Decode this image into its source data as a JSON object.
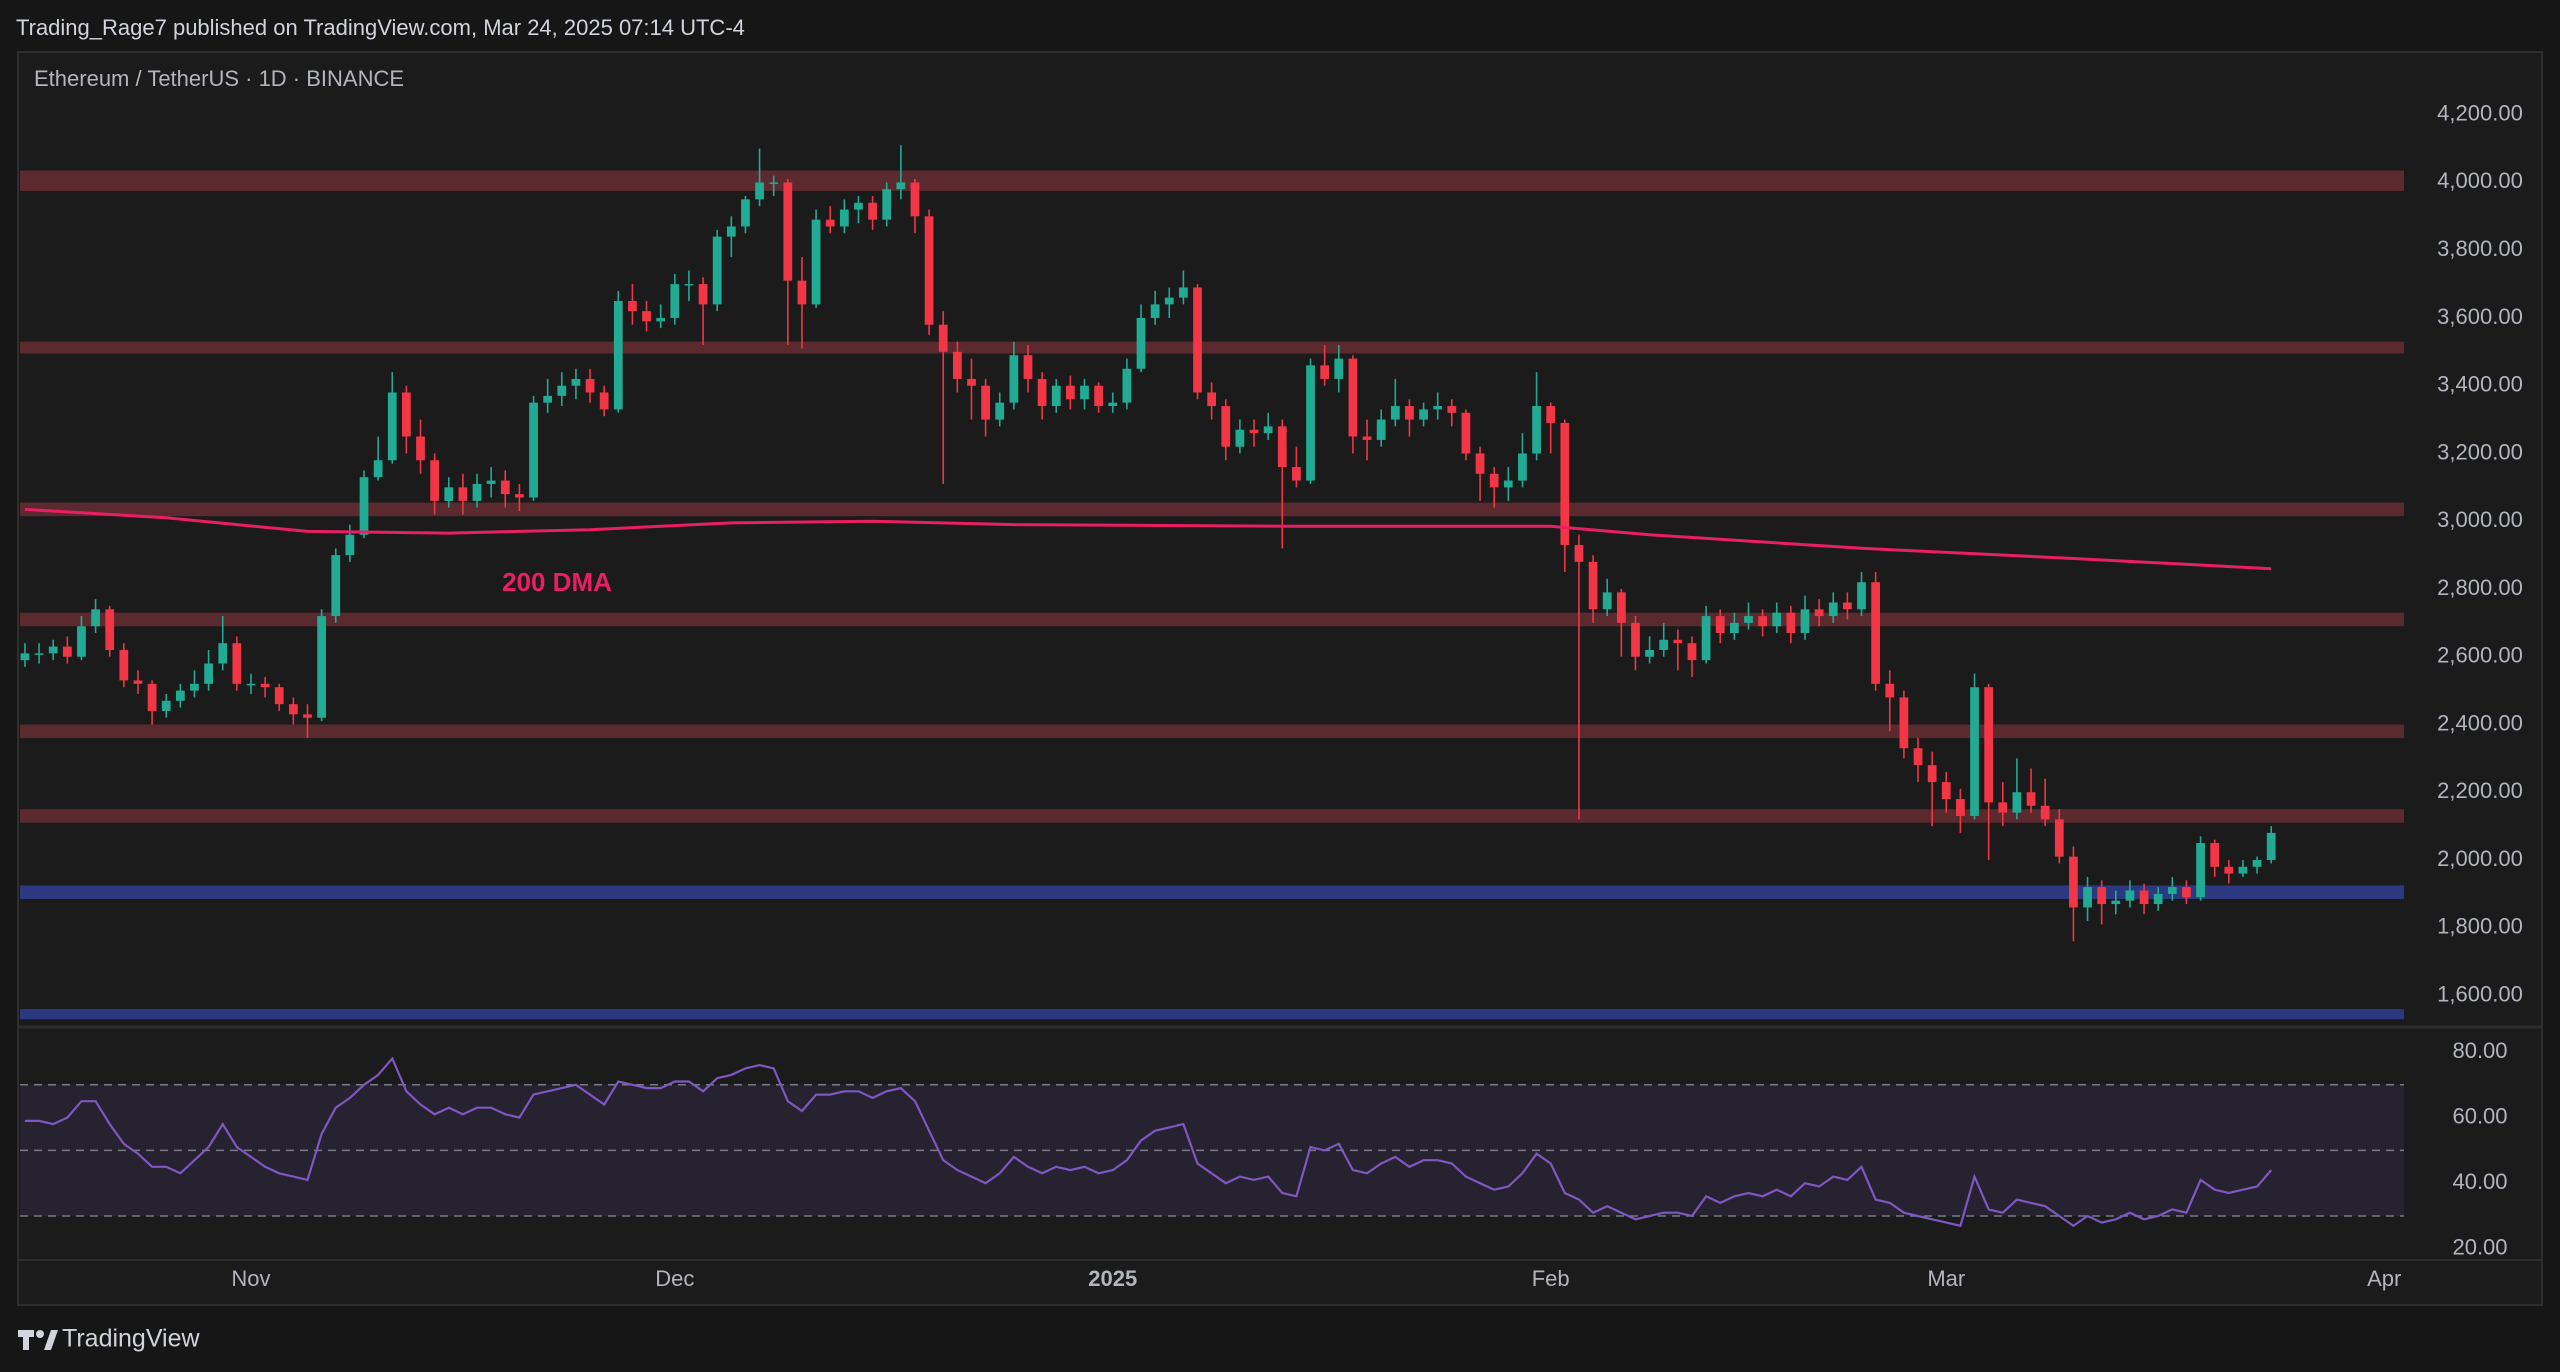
{
  "header": "Trading_Rage7 published on TradingView.com, Mar 24, 2025 07:14 UTC-4",
  "footer": "TradingView",
  "chart_data": [
    {
      "type": "candlestick",
      "title": "Ethereum / TetherUS · 1D · BINANCE",
      "up_color": "#22ab94",
      "down_color": "#f23645",
      "xlim": [
        -0.35,
        168.4
      ],
      "xticks": [
        {
          "value": 16,
          "label": "Nov"
        },
        {
          "value": 46,
          "label": "Dec"
        },
        {
          "value": 77,
          "label": "2025"
        },
        {
          "value": 108,
          "label": "Feb"
        },
        {
          "value": 136,
          "label": "Mar"
        },
        {
          "value": 167,
          "label": "Apr"
        }
      ],
      "ylim": [
        1513,
        4385
      ],
      "yticks": [
        {
          "value": 1600,
          "label": "1,600.00"
        },
        {
          "value": 1800,
          "label": "1,800.00"
        },
        {
          "value": 2000,
          "label": "2,000.00"
        },
        {
          "value": 2200,
          "label": "2,200.00"
        },
        {
          "value": 2400,
          "label": "2,400.00"
        },
        {
          "value": 2600,
          "label": "2,600.00"
        },
        {
          "value": 2800,
          "label": "2,800.00"
        },
        {
          "value": 3000,
          "label": "3,000.00"
        },
        {
          "value": 3200,
          "label": "3,200.00"
        },
        {
          "value": 3400,
          "label": "3,400.00"
        },
        {
          "value": 3600,
          "label": "3,600.00"
        },
        {
          "value": 3800,
          "label": "3,800.00"
        },
        {
          "value": 4000,
          "label": "4,000.00"
        },
        {
          "value": 4200,
          "label": "4,200.00"
        }
      ],
      "zones": [
        {
          "from": 3975,
          "to": 4035,
          "color": "#5b2a2e"
        },
        {
          "from": 3495,
          "to": 3530,
          "color": "#5b2a2e"
        },
        {
          "from": 3015,
          "to": 3055,
          "color": "#5b2a2e"
        },
        {
          "from": 2690,
          "to": 2730,
          "color": "#5b2a2e"
        },
        {
          "from": 2360,
          "to": 2400,
          "color": "#5b2a2e"
        },
        {
          "from": 2110,
          "to": 2150,
          "color": "#5b2a2e"
        },
        {
          "from": 1885,
          "to": 1925,
          "color": "#2b3a80"
        },
        {
          "from": 1530,
          "to": 1560,
          "color": "#2b3a80"
        }
      ],
      "series": [
        {
          "name": "200 DMA",
          "color": "#e91e63",
          "x": [
            0,
            10,
            20,
            30,
            40,
            50,
            60,
            70,
            90,
            108,
            115,
            130,
            145,
            159
          ],
          "values": [
            3035,
            3010,
            2970,
            2965,
            2975,
            2995,
            3000,
            2990,
            2985,
            2985,
            2960,
            2920,
            2890,
            2860
          ]
        }
      ],
      "annotation": "200 DMA",
      "candles": [
        [
          2590,
          2640,
          2570,
          2610
        ],
        [
          2610,
          2640,
          2580,
          2610
        ],
        [
          2610,
          2650,
          2590,
          2630
        ],
        [
          2630,
          2660,
          2580,
          2600
        ],
        [
          2600,
          2720,
          2590,
          2690
        ],
        [
          2690,
          2770,
          2670,
          2740
        ],
        [
          2740,
          2750,
          2600,
          2620
        ],
        [
          2620,
          2640,
          2510,
          2530
        ],
        [
          2530,
          2560,
          2490,
          2520
        ],
        [
          2520,
          2530,
          2400,
          2440
        ],
        [
          2440,
          2490,
          2420,
          2470
        ],
        [
          2470,
          2520,
          2450,
          2500
        ],
        [
          2500,
          2560,
          2480,
          2520
        ],
        [
          2520,
          2620,
          2500,
          2580
        ],
        [
          2580,
          2720,
          2560,
          2640
        ],
        [
          2640,
          2660,
          2500,
          2520
        ],
        [
          2520,
          2550,
          2490,
          2520
        ],
        [
          2520,
          2540,
          2480,
          2510
        ],
        [
          2510,
          2520,
          2440,
          2460
        ],
        [
          2460,
          2480,
          2400,
          2430
        ],
        [
          2430,
          2460,
          2360,
          2420
        ],
        [
          2420,
          2740,
          2410,
          2720
        ],
        [
          2720,
          2920,
          2700,
          2900
        ],
        [
          2900,
          2990,
          2880,
          2960
        ],
        [
          2960,
          3150,
          2950,
          3130
        ],
        [
          3130,
          3250,
          3120,
          3180
        ],
        [
          3180,
          3440,
          3170,
          3380
        ],
        [
          3380,
          3400,
          3200,
          3250
        ],
        [
          3250,
          3300,
          3140,
          3180
        ],
        [
          3180,
          3200,
          3020,
          3060
        ],
        [
          3060,
          3130,
          3040,
          3100
        ],
        [
          3100,
          3140,
          3020,
          3060
        ],
        [
          3060,
          3140,
          3040,
          3110
        ],
        [
          3110,
          3160,
          3070,
          3120
        ],
        [
          3120,
          3150,
          3040,
          3080
        ],
        [
          3080,
          3110,
          3030,
          3070
        ],
        [
          3070,
          3370,
          3060,
          3350
        ],
        [
          3350,
          3420,
          3320,
          3370
        ],
        [
          3370,
          3440,
          3340,
          3400
        ],
        [
          3400,
          3450,
          3360,
          3420
        ],
        [
          3420,
          3450,
          3350,
          3380
        ],
        [
          3380,
          3400,
          3310,
          3330
        ],
        [
          3330,
          3680,
          3320,
          3650
        ],
        [
          3650,
          3700,
          3580,
          3620
        ],
        [
          3620,
          3650,
          3560,
          3590
        ],
        [
          3590,
          3640,
          3570,
          3600
        ],
        [
          3600,
          3730,
          3580,
          3700
        ],
        [
          3700,
          3740,
          3650,
          3700
        ],
        [
          3700,
          3720,
          3520,
          3640
        ],
        [
          3640,
          3860,
          3620,
          3840
        ],
        [
          3840,
          3900,
          3780,
          3870
        ],
        [
          3870,
          3960,
          3850,
          3950
        ],
        [
          3950,
          4100,
          3930,
          4000
        ],
        [
          4000,
          4020,
          3960,
          4000
        ],
        [
          4000,
          4010,
          3520,
          3710
        ],
        [
          3710,
          3780,
          3510,
          3640
        ],
        [
          3640,
          3920,
          3630,
          3890
        ],
        [
          3890,
          3930,
          3850,
          3870
        ],
        [
          3870,
          3950,
          3850,
          3920
        ],
        [
          3920,
          3960,
          3880,
          3940
        ],
        [
          3940,
          3960,
          3860,
          3890
        ],
        [
          3890,
          4000,
          3870,
          3980
        ],
        [
          3980,
          4110,
          3950,
          4000
        ],
        [
          4000,
          4010,
          3850,
          3900
        ],
        [
          3900,
          3920,
          3550,
          3580
        ],
        [
          3580,
          3620,
          3110,
          3500
        ],
        [
          3500,
          3530,
          3380,
          3420
        ],
        [
          3420,
          3480,
          3300,
          3400
        ],
        [
          3400,
          3420,
          3250,
          3300
        ],
        [
          3300,
          3380,
          3280,
          3350
        ],
        [
          3350,
          3530,
          3330,
          3490
        ],
        [
          3490,
          3520,
          3380,
          3420
        ],
        [
          3420,
          3440,
          3300,
          3340
        ],
        [
          3340,
          3420,
          3320,
          3400
        ],
        [
          3400,
          3430,
          3330,
          3360
        ],
        [
          3360,
          3420,
          3330,
          3400
        ],
        [
          3400,
          3410,
          3320,
          3340
        ],
        [
          3340,
          3380,
          3320,
          3350
        ],
        [
          3350,
          3480,
          3330,
          3450
        ],
        [
          3450,
          3640,
          3440,
          3600
        ],
        [
          3600,
          3680,
          3580,
          3640
        ],
        [
          3640,
          3690,
          3600,
          3660
        ],
        [
          3660,
          3740,
          3640,
          3690
        ],
        [
          3690,
          3700,
          3360,
          3380
        ],
        [
          3380,
          3410,
          3300,
          3340
        ],
        [
          3340,
          3360,
          3180,
          3220
        ],
        [
          3220,
          3300,
          3200,
          3270
        ],
        [
          3270,
          3300,
          3220,
          3260
        ],
        [
          3260,
          3320,
          3240,
          3280
        ],
        [
          3280,
          3300,
          2920,
          3160
        ],
        [
          3160,
          3220,
          3100,
          3120
        ],
        [
          3120,
          3480,
          3110,
          3460
        ],
        [
          3460,
          3520,
          3400,
          3420
        ],
        [
          3420,
          3520,
          3380,
          3480
        ],
        [
          3480,
          3490,
          3200,
          3250
        ],
        [
          3250,
          3300,
          3180,
          3240
        ],
        [
          3240,
          3330,
          3220,
          3300
        ],
        [
          3300,
          3420,
          3280,
          3340
        ],
        [
          3340,
          3360,
          3250,
          3300
        ],
        [
          3300,
          3350,
          3280,
          3330
        ],
        [
          3330,
          3380,
          3300,
          3340
        ],
        [
          3340,
          3360,
          3280,
          3320
        ],
        [
          3320,
          3330,
          3180,
          3200
        ],
        [
          3200,
          3220,
          3060,
          3140
        ],
        [
          3140,
          3160,
          3040,
          3100
        ],
        [
          3100,
          3160,
          3060,
          3120
        ],
        [
          3120,
          3260,
          3100,
          3200
        ],
        [
          3200,
          3440,
          3180,
          3340
        ],
        [
          3340,
          3350,
          3200,
          3290
        ],
        [
          3290,
          3300,
          2850,
          2930
        ],
        [
          2930,
          2960,
          2120,
          2880
        ],
        [
          2880,
          2900,
          2700,
          2740
        ],
        [
          2740,
          2830,
          2720,
          2790
        ],
        [
          2790,
          2800,
          2600,
          2700
        ],
        [
          2700,
          2720,
          2560,
          2600
        ],
        [
          2600,
          2660,
          2580,
          2620
        ],
        [
          2620,
          2700,
          2600,
          2650
        ],
        [
          2650,
          2680,
          2560,
          2640
        ],
        [
          2640,
          2660,
          2540,
          2590
        ],
        [
          2590,
          2750,
          2580,
          2720
        ],
        [
          2720,
          2740,
          2640,
          2670
        ],
        [
          2670,
          2730,
          2650,
          2700
        ],
        [
          2700,
          2760,
          2680,
          2720
        ],
        [
          2720,
          2740,
          2660,
          2690
        ],
        [
          2690,
          2760,
          2670,
          2730
        ],
        [
          2730,
          2750,
          2640,
          2670
        ],
        [
          2670,
          2780,
          2650,
          2740
        ],
        [
          2740,
          2770,
          2690,
          2720
        ],
        [
          2720,
          2790,
          2700,
          2760
        ],
        [
          2760,
          2790,
          2710,
          2740
        ],
        [
          2740,
          2850,
          2720,
          2820
        ],
        [
          2820,
          2850,
          2500,
          2520
        ],
        [
          2520,
          2560,
          2380,
          2480
        ],
        [
          2480,
          2500,
          2300,
          2330
        ],
        [
          2330,
          2360,
          2230,
          2280
        ],
        [
          2280,
          2320,
          2100,
          2230
        ],
        [
          2230,
          2260,
          2140,
          2180
        ],
        [
          2180,
          2210,
          2080,
          2130
        ],
        [
          2130,
          2550,
          2120,
          2510
        ],
        [
          2510,
          2520,
          2000,
          2170
        ],
        [
          2170,
          2230,
          2100,
          2140
        ],
        [
          2140,
          2300,
          2120,
          2200
        ],
        [
          2200,
          2270,
          2140,
          2160
        ],
        [
          2160,
          2240,
          2100,
          2120
        ],
        [
          2120,
          2150,
          1990,
          2010
        ],
        [
          2010,
          2040,
          1760,
          1860
        ],
        [
          1860,
          1950,
          1820,
          1920
        ],
        [
          1920,
          1940,
          1810,
          1870
        ],
        [
          1870,
          1910,
          1840,
          1880
        ],
        [
          1880,
          1940,
          1860,
          1910
        ],
        [
          1910,
          1930,
          1840,
          1870
        ],
        [
          1870,
          1920,
          1850,
          1900
        ],
        [
          1900,
          1950,
          1880,
          1920
        ],
        [
          1920,
          1940,
          1870,
          1890
        ],
        [
          1890,
          2070,
          1880,
          2050
        ],
        [
          2050,
          2060,
          1950,
          1980
        ],
        [
          1980,
          2000,
          1930,
          1960
        ],
        [
          1960,
          2000,
          1950,
          1980
        ],
        [
          1980,
          2010,
          1960,
          2000
        ],
        [
          2000,
          2100,
          1990,
          2080
        ]
      ]
    },
    {
      "type": "line",
      "color": "#7e57c2",
      "ylim": [
        17.5,
        87
      ],
      "yticks": [
        {
          "value": 80,
          "label": "80.00"
        },
        {
          "value": 60,
          "label": "60.00"
        },
        {
          "value": 40,
          "label": "40.00"
        },
        {
          "value": 20,
          "label": "20.00"
        }
      ],
      "levels": [
        70,
        50,
        30
      ],
      "values": [
        59,
        59,
        58,
        60,
        65,
        65,
        58,
        52,
        49,
        45,
        45,
        43,
        47,
        51,
        58,
        51,
        48,
        45,
        43,
        42,
        41,
        55,
        63,
        66,
        70,
        73,
        78,
        68,
        64,
        61,
        63,
        61,
        63,
        63,
        61,
        60,
        67,
        68,
        69,
        70,
        67,
        64,
        71,
        70,
        69,
        69,
        71,
        71,
        68,
        72,
        73,
        75,
        76,
        75,
        65,
        62,
        67,
        67,
        68,
        68,
        66,
        68,
        69,
        65,
        56,
        47,
        44,
        42,
        40,
        43,
        48,
        45,
        43,
        45,
        44,
        45,
        43,
        44,
        47,
        53,
        56,
        57,
        58,
        46,
        43,
        40,
        42,
        41,
        42,
        37,
        36,
        51,
        50,
        52,
        44,
        43,
        46,
        48,
        45,
        47,
        47,
        46,
        42,
        40,
        38,
        39,
        43,
        49,
        46,
        37,
        35,
        31,
        33,
        31,
        29,
        30,
        31,
        31,
        30,
        36,
        34,
        36,
        37,
        36,
        38,
        36,
        40,
        39,
        42,
        41,
        45,
        35,
        34,
        31,
        30,
        29,
        28,
        27,
        42,
        32,
        31,
        35,
        34,
        33,
        30,
        27,
        30,
        28,
        29,
        31,
        29,
        30,
        32,
        31,
        41,
        38,
        37,
        38,
        39,
        44
      ]
    }
  ]
}
